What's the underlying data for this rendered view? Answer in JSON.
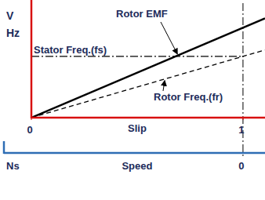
{
  "chart_data": {
    "type": "line",
    "ylabel": [
      "V",
      "Hz"
    ],
    "xlabel": "Slip",
    "xlim": [
      0,
      1.104
    ],
    "xticks": [
      0,
      1
    ],
    "ylim": [
      0,
      1.92
    ],
    "yticks": [],
    "tick_labels": "x",
    "grid": false,
    "series": [
      {
        "name": "Rotor EMF",
        "color": "#000000",
        "line_style": "solid",
        "x": [
          0,
          1.104
        ],
        "values": [
          0,
          1.62
        ]
      },
      {
        "name": "Rotor Freq.(fr)",
        "color": "#000000",
        "line_style": "dashed",
        "x": [
          0,
          1.104
        ],
        "values": [
          0,
          1.104
        ]
      },
      {
        "name": "Stator Freq.(fs)",
        "color": "#000000",
        "line_style": "dashdot",
        "x": [
          0,
          1
        ],
        "values": [
          1,
          1
        ]
      }
    ],
    "reference_lines": [
      {
        "x": 1,
        "line_style": "dashdot"
      }
    ],
    "speed_axis": {
      "label": "Speed",
      "ticks": [
        {
          "value": 0,
          "label": "Ns"
        },
        {
          "value": 1,
          "label": "0"
        }
      ]
    }
  }
}
